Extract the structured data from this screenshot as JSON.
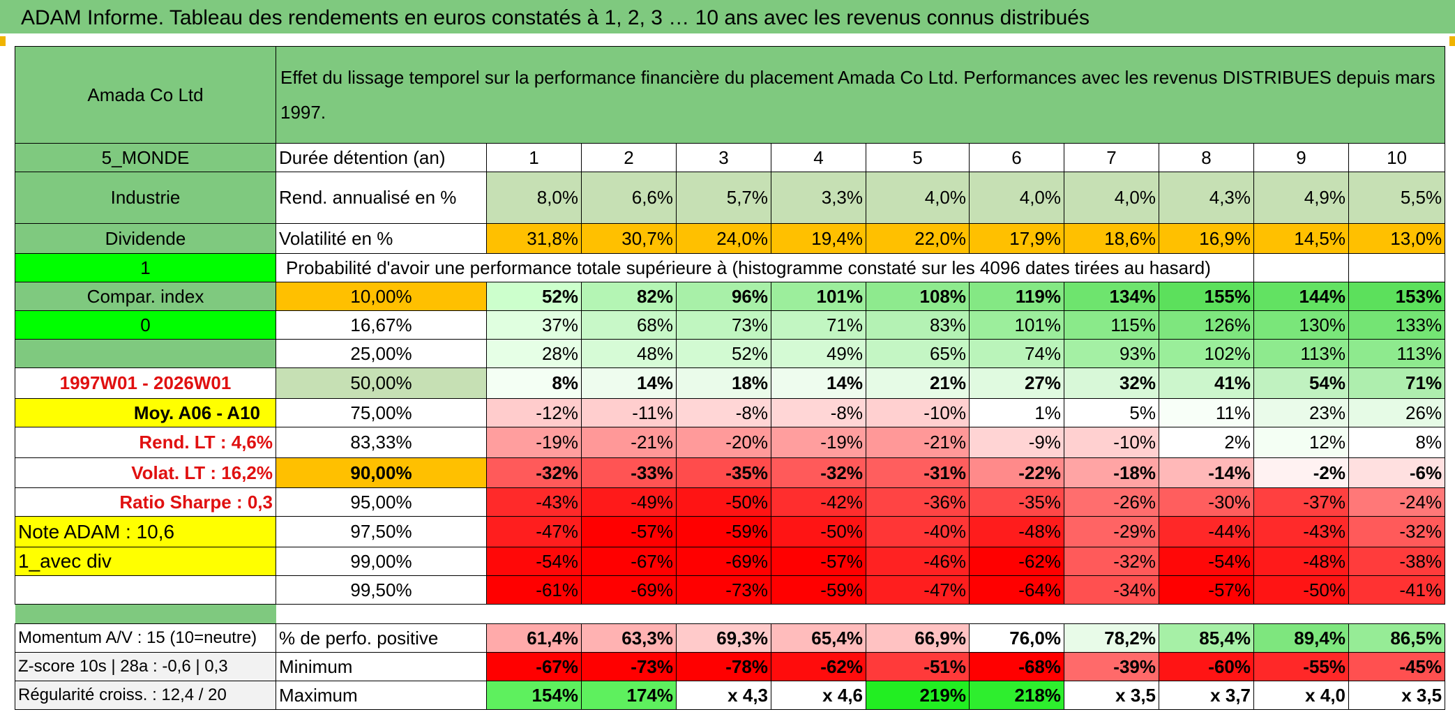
{
  "title": "ADAM Informe. Tableau des rendements en euros constatés à 1, 2, 3 … 10 ans avec les revenus connus distribués",
  "header": {
    "name": "Amada Co Ltd",
    "description": "Effet du lissage temporel sur la performance financière du placement Amada Co Ltd. Performances avec les revenus DISTRIBUES depuis mars 1997."
  },
  "left_labels": {
    "region": "5_MONDE",
    "sector": "Industrie",
    "dividend": "Dividende",
    "one": "1",
    "compar": "Compar. index",
    "zero": "0",
    "period": "1997W01 - 2026W01",
    "moy": "Moy. A06 - A10",
    "rend_lt": "Rend. LT :   4,6%",
    "volat_lt": "Volat. LT :   16,2%",
    "sharpe": "Ratio Sharpe :   0,3",
    "note": "Note ADAM : 10,6",
    "avec_div": "1_avec div",
    "momentum": "Momentum A/V : 15 (10=neutre)",
    "zscore": "Z-score 10s | 28a : -0,6 | 0,3",
    "regularite": "Régularité croiss. : 12,4 / 20"
  },
  "row_labels": {
    "duree": "Durée détention (an)",
    "rend": "Rend. annualisé en %",
    "volat": "Volatilité en %",
    "proba": "Probabilité d'avoir une performance totale supérieure à (histogramme constaté sur les 4096 dates tirées au hasard)",
    "perfo_pos": "% de perfo. positive",
    "minimum": "Minimum",
    "maximum": "Maximum"
  },
  "years": [
    "1",
    "2",
    "3",
    "4",
    "5",
    "6",
    "7",
    "8",
    "9",
    "10"
  ],
  "rend": [
    "8,0%",
    "6,6%",
    "5,7%",
    "3,3%",
    "4,0%",
    "4,0%",
    "4,0%",
    "4,3%",
    "4,9%",
    "5,5%"
  ],
  "volat": [
    "31,8%",
    "30,7%",
    "24,0%",
    "19,4%",
    "22,0%",
    "17,9%",
    "18,6%",
    "16,9%",
    "14,5%",
    "13,0%"
  ],
  "probabilities": [
    {
      "level": "10,00%",
      "values": [
        "52%",
        "82%",
        "96%",
        "101%",
        "108%",
        "119%",
        "134%",
        "155%",
        "144%",
        "153%"
      ],
      "colors": [
        "#ccffcc",
        "#b4f5b4",
        "#a8f0a8",
        "#9cee9c",
        "#8eea8e",
        "#84e884",
        "#6ee46e",
        "#5ce05c",
        "#62e262",
        "#5ce05c"
      ]
    },
    {
      "level": "16,67%",
      "values": [
        "37%",
        "68%",
        "73%",
        "71%",
        "83%",
        "101%",
        "115%",
        "126%",
        "130%",
        "133%"
      ],
      "colors": [
        "#e0ffe0",
        "#c8f8c8",
        "#c0f6c0",
        "#c2f6c2",
        "#b4f2b4",
        "#9cee9c",
        "#8aea8a",
        "#7ee67e",
        "#7ae67a",
        "#74e474"
      ]
    },
    {
      "level": "25,00%",
      "values": [
        "28%",
        "48%",
        "52%",
        "49%",
        "65%",
        "74%",
        "93%",
        "102%",
        "113%",
        "113%"
      ],
      "colors": [
        "#e6ffe6",
        "#d6fbd6",
        "#d2fad2",
        "#d4fad4",
        "#c4f6c4",
        "#baf4ba",
        "#a4f0a4",
        "#9aee9a",
        "#8eea8e",
        "#8eea8e"
      ]
    },
    {
      "level": "50,00%",
      "values": [
        "8%",
        "14%",
        "18%",
        "14%",
        "21%",
        "27%",
        "32%",
        "41%",
        "54%",
        "71%"
      ],
      "colors": [
        "#f4fff4",
        "#eefcee",
        "#eafbea",
        "#eefcee",
        "#e6fbe6",
        "#e0fae0",
        "#d8f8d8",
        "#ccf6cc",
        "#c0f2c0",
        "#aeeeae"
      ]
    },
    {
      "level": "75,00%",
      "values": [
        "-12%",
        "-11%",
        "-8%",
        "-8%",
        "-10%",
        "1%",
        "5%",
        "11%",
        "23%",
        "26%"
      ],
      "colors": [
        "#ffcccc",
        "#ffcece",
        "#ffd6d6",
        "#ffd6d6",
        "#ffd0d0",
        "#ffffff",
        "#ffffff",
        "#f8fff8",
        "#eafbea",
        "#e6fbe6"
      ]
    },
    {
      "level": "83,33%",
      "values": [
        "-19%",
        "-21%",
        "-20%",
        "-19%",
        "-21%",
        "-9%",
        "-10%",
        "2%",
        "12%",
        "8%"
      ],
      "colors": [
        "#ff9e9e",
        "#ff9898",
        "#ff9a9a",
        "#ff9e9e",
        "#ff9898",
        "#ffd4d4",
        "#ffd0d0",
        "#ffffff",
        "#f4fff4",
        "#ffffff"
      ]
    },
    {
      "level": "90,00%",
      "values": [
        "-32%",
        "-33%",
        "-35%",
        "-32%",
        "-31%",
        "-22%",
        "-18%",
        "-14%",
        "-2%",
        "-6%"
      ],
      "colors": [
        "#ff5a5a",
        "#ff5454",
        "#ff4c4c",
        "#ff5a5a",
        "#ff5e5e",
        "#ff8a8a",
        "#ffa4a4",
        "#ffb8b8",
        "#fff2f2",
        "#ffe0e0"
      ]
    },
    {
      "level": "95,00%",
      "values": [
        "-43%",
        "-49%",
        "-50%",
        "-42%",
        "-36%",
        "-35%",
        "-26%",
        "-30%",
        "-37%",
        "-24%"
      ],
      "colors": [
        "#ff2a2a",
        "#ff1a1a",
        "#ff1414",
        "#ff2e2e",
        "#ff4444",
        "#ff4848",
        "#ff6e6e",
        "#ff5e5e",
        "#ff4040",
        "#ff7878"
      ]
    },
    {
      "level": "97,50%",
      "values": [
        "-47%",
        "-57%",
        "-59%",
        "-50%",
        "-40%",
        "-48%",
        "-29%",
        "-44%",
        "-43%",
        "-32%"
      ],
      "colors": [
        "#ff1e1e",
        "#ff0000",
        "#ff0000",
        "#ff1414",
        "#ff3636",
        "#ff1c1c",
        "#ff6464",
        "#ff2828",
        "#ff2a2a",
        "#ff5a5a"
      ]
    },
    {
      "level": "99,00%",
      "values": [
        "-54%",
        "-67%",
        "-69%",
        "-57%",
        "-46%",
        "-62%",
        "-32%",
        "-54%",
        "-48%",
        "-38%"
      ],
      "colors": [
        "#ff0808",
        "#ff0000",
        "#ff0000",
        "#ff0000",
        "#ff2222",
        "#ff0000",
        "#ff5a5a",
        "#ff0808",
        "#ff1a1a",
        "#ff3c3c"
      ]
    },
    {
      "level": "99,50%",
      "values": [
        "-61%",
        "-69%",
        "-73%",
        "-59%",
        "-47%",
        "-64%",
        "-34%",
        "-57%",
        "-50%",
        "-41%"
      ],
      "colors": [
        "#ff0000",
        "#ff0000",
        "#ff0000",
        "#ff0000",
        "#ff1e1e",
        "#ff0000",
        "#ff5050",
        "#ff0000",
        "#ff1414",
        "#ff3232"
      ]
    }
  ],
  "perfo_pos": {
    "values": [
      "61,4%",
      "63,3%",
      "69,3%",
      "65,4%",
      "66,9%",
      "76,0%",
      "78,2%",
      "85,4%",
      "89,4%",
      "86,5%"
    ],
    "colors": [
      "#ffaaaa",
      "#ffb2b2",
      "#ffcaca",
      "#ffbcbc",
      "#ffc2c2",
      "#ffffff",
      "#e8fbe8",
      "#a6f0a6",
      "#7ee67e",
      "#96ec96"
    ]
  },
  "minimum": {
    "values": [
      "-67%",
      "-73%",
      "-78%",
      "-62%",
      "-51%",
      "-68%",
      "-39%",
      "-60%",
      "-55%",
      "-45%"
    ],
    "colors": [
      "#ff0000",
      "#ff0000",
      "#ff0000",
      "#ff0c0c",
      "#ff3a3a",
      "#ff0000",
      "#ff6a6a",
      "#ff1414",
      "#ff2828",
      "#ff5050"
    ]
  },
  "maximum": {
    "values": [
      "154%",
      "174%",
      "x 4,3",
      "x 4,6",
      "219%",
      "218%",
      "x 3,5",
      "x 3,7",
      "x 4,0",
      "x 3,5"
    ],
    "colors": [
      "#5ef05e",
      "#5ef05e",
      "#ffffff",
      "#ffffff",
      "#22ee22",
      "#2eee2e",
      "#ffffff",
      "#ffffff",
      "#ffffff",
      "#ffffff"
    ]
  }
}
